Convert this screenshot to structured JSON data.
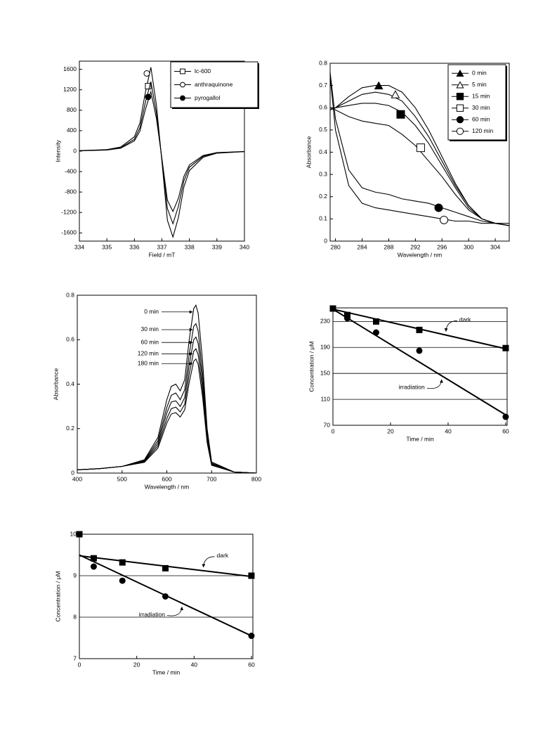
{
  "chart_data": [
    {
      "type": "line",
      "xlabel": "Field / mT",
      "ylabel": "Intensity",
      "x": [
        334,
        335,
        335.5,
        336,
        336.2,
        336.4,
        336.6,
        336.8,
        337,
        337.2,
        337.4,
        337.6,
        337.8,
        338,
        338.5,
        339,
        340
      ],
      "series": [
        {
          "name": "lc-600",
          "color": "#000",
          "marker": "square",
          "marker_fill": "white",
          "marker_point": [
            336.5,
            1270
          ],
          "values": [
            10,
            30,
            80,
            280,
            550,
            1150,
            1640,
            900,
            -200,
            -1350,
            -1680,
            -1300,
            -700,
            -380,
            -120,
            -40,
            -10
          ]
        },
        {
          "name": "anthraquinone",
          "color": "#000",
          "marker": "circle",
          "marker_fill": "white",
          "marker_point": [
            336.45,
            1520
          ],
          "values": [
            8,
            25,
            66,
            232,
            456,
            955,
            1360,
            747,
            -166,
            -1120,
            -1420,
            -1080,
            -580,
            -315,
            -100,
            -33,
            -8
          ]
        },
        {
          "name": "pyrogallol",
          "color": "#000",
          "marker": "circle",
          "marker_fill": "black",
          "marker_point": [
            336.5,
            1060
          ],
          "values": [
            7,
            21,
            57,
            199,
            390,
            816,
            1160,
            639,
            -142,
            -958,
            -1180,
            -923,
            -497,
            -270,
            -85,
            -28,
            -7
          ]
        }
      ],
      "xlim": [
        334,
        340
      ],
      "xticks": [
        334,
        335,
        336,
        337,
        338,
        339,
        340
      ],
      "ylim": [
        -1760,
        1760
      ],
      "yticks": [
        -1600,
        -1200,
        -800,
        -400,
        0,
        400,
        800,
        1200,
        1600
      ],
      "legend": "upper right"
    },
    {
      "type": "line",
      "xlabel": "Wavelength / nm",
      "ylabel": "Absorbance",
      "x": [
        279.2,
        280,
        282,
        284,
        286,
        288,
        290,
        292,
        294,
        296,
        298,
        300,
        302,
        304,
        306.1
      ],
      "series": [
        {
          "name": "0 min",
          "color": "#000",
          "marker": "triangle",
          "marker_fill": "black",
          "marker_point": [
            286.5,
            0.7
          ],
          "values": [
            0.59,
            0.6,
            0.65,
            0.69,
            0.7,
            0.7,
            0.67,
            0.6,
            0.5,
            0.38,
            0.26,
            0.16,
            0.1,
            0.08,
            0.07
          ]
        },
        {
          "name": "5 min",
          "color": "#000",
          "marker": "triangle",
          "marker_fill": "white",
          "marker_point": [
            289,
            0.66
          ],
          "values": [
            0.59,
            0.6,
            0.63,
            0.66,
            0.67,
            0.66,
            0.63,
            0.56,
            0.47,
            0.36,
            0.25,
            0.16,
            0.1,
            0.08,
            0.07
          ]
        },
        {
          "name": "15 min",
          "color": "#000",
          "marker": "square",
          "marker_fill": "black",
          "marker_point": [
            289.8,
            0.57
          ],
          "values": [
            0.59,
            0.6,
            0.61,
            0.62,
            0.62,
            0.61,
            0.58,
            0.52,
            0.44,
            0.34,
            0.24,
            0.15,
            0.1,
            0.08,
            0.07
          ]
        },
        {
          "name": "30 min",
          "color": "#000",
          "marker": "square",
          "marker_fill": "white",
          "marker_point": [
            292.8,
            0.42
          ],
          "values": [
            0.6,
            0.59,
            0.56,
            0.54,
            0.53,
            0.52,
            0.48,
            0.43,
            0.36,
            0.29,
            0.21,
            0.14,
            0.1,
            0.08,
            0.07
          ]
        },
        {
          "name": "60 min",
          "color": "#000",
          "marker": "circle",
          "marker_fill": "black",
          "marker_point": [
            295.5,
            0.15
          ],
          "values": [
            0.76,
            0.55,
            0.32,
            0.24,
            0.22,
            0.21,
            0.19,
            0.18,
            0.17,
            0.15,
            0.13,
            0.11,
            0.09,
            0.08,
            0.07
          ]
        },
        {
          "name": "120 min",
          "color": "#000",
          "marker": "circle",
          "marker_fill": "white",
          "marker_point": [
            296.3,
            0.095
          ],
          "values": [
            0.74,
            0.5,
            0.25,
            0.17,
            0.15,
            0.14,
            0.13,
            0.12,
            0.11,
            0.1,
            0.09,
            0.09,
            0.08,
            0.08,
            0.08
          ]
        }
      ],
      "xlim": [
        279.2,
        306.1
      ],
      "xticks": [
        280,
        284,
        288,
        292,
        296,
        300,
        304
      ],
      "ylim": [
        0,
        0.8
      ],
      "yticks": [
        0,
        0.1,
        0.2,
        0.3,
        0.4,
        0.5,
        0.6,
        0.7,
        0.8
      ],
      "legend": "upper right"
    },
    {
      "type": "line",
      "xlabel": "Wavelength / nm",
      "ylabel": "Absorbance",
      "x": [
        400,
        450,
        500,
        550,
        580,
        600,
        610,
        620,
        630,
        640,
        650,
        660,
        665,
        670,
        680,
        690,
        700,
        750,
        800
      ],
      "series": [
        {
          "name": "0 min",
          "color": "#000",
          "values": [
            0.015,
            0.02,
            0.03,
            0.06,
            0.16,
            0.33,
            0.39,
            0.4,
            0.37,
            0.42,
            0.6,
            0.74,
            0.755,
            0.72,
            0.5,
            0.2,
            0.05,
            0.005,
            0
          ]
        },
        {
          "name": "30 min",
          "color": "#000",
          "values": [
            0.015,
            0.02,
            0.03,
            0.057,
            0.145,
            0.295,
            0.35,
            0.36,
            0.33,
            0.375,
            0.535,
            0.66,
            0.672,
            0.64,
            0.445,
            0.18,
            0.045,
            0.005,
            0
          ]
        },
        {
          "name": "60 min",
          "color": "#000",
          "values": [
            0.015,
            0.02,
            0.03,
            0.054,
            0.133,
            0.27,
            0.32,
            0.325,
            0.3,
            0.34,
            0.487,
            0.6,
            0.612,
            0.583,
            0.405,
            0.163,
            0.041,
            0.005,
            0
          ]
        },
        {
          "name": "120 min",
          "color": "#000",
          "values": [
            0.015,
            0.02,
            0.03,
            0.051,
            0.122,
            0.245,
            0.29,
            0.297,
            0.275,
            0.31,
            0.445,
            0.548,
            0.559,
            0.533,
            0.37,
            0.15,
            0.038,
            0.005,
            0
          ]
        },
        {
          "name": "180 min",
          "color": "#000",
          "values": [
            0.015,
            0.02,
            0.03,
            0.048,
            0.112,
            0.225,
            0.266,
            0.272,
            0.252,
            0.285,
            0.408,
            0.503,
            0.513,
            0.49,
            0.34,
            0.137,
            0.035,
            0.005,
            0
          ]
        }
      ],
      "xlim": [
        400,
        800
      ],
      "xticks": [
        400,
        500,
        600,
        700,
        800
      ],
      "ylim": [
        0,
        0.8
      ],
      "yticks": [
        0,
        0.2,
        0.4,
        0.6,
        0.8
      ]
    },
    {
      "type": "scatter",
      "xlabel": "Time / min",
      "ylabel": "Concentration / μM",
      "x": [
        0,
        5,
        15,
        30,
        60
      ],
      "series": [
        {
          "name": "dark",
          "color": "#000",
          "marker": "square",
          "marker_fill": "black",
          "values": [
            250,
            240,
            230,
            217,
            189
          ],
          "fit": [
            249,
            188
          ]
        },
        {
          "name": "irradiation",
          "color": "#000",
          "marker": "circle",
          "marker_fill": "black",
          "values": [
            250,
            235,
            213,
            185,
            83
          ],
          "fit": [
            249,
            86
          ]
        }
      ],
      "xlim": [
        0,
        60.5
      ],
      "xticks": [
        0,
        20,
        40,
        60
      ],
      "ylim": [
        70,
        251
      ],
      "yticks": [
        70,
        110,
        150,
        190,
        230
      ],
      "grid": true
    },
    {
      "type": "scatter",
      "xlabel": "Time / min",
      "ylabel": "Concentration / μM",
      "x": [
        0,
        5,
        15,
        30,
        60
      ],
      "series": [
        {
          "name": "dark",
          "color": "#000",
          "marker": "square",
          "marker_fill": "black",
          "values": [
            10,
            9.42,
            9.32,
            9.18,
            9.0
          ],
          "fit": [
            9.48,
            8.98
          ]
        },
        {
          "name": "irradiation",
          "color": "#000",
          "marker": "circle",
          "marker_fill": "black",
          "values": [
            10,
            9.22,
            8.88,
            8.5,
            7.55
          ],
          "fit": [
            9.5,
            7.55
          ]
        }
      ],
      "xlim": [
        0,
        60.5
      ],
      "xticks": [
        0,
        20,
        40,
        60
      ],
      "ylim": [
        7,
        10
      ],
      "yticks": [
        7,
        8,
        9,
        10
      ],
      "grid": true
    }
  ]
}
